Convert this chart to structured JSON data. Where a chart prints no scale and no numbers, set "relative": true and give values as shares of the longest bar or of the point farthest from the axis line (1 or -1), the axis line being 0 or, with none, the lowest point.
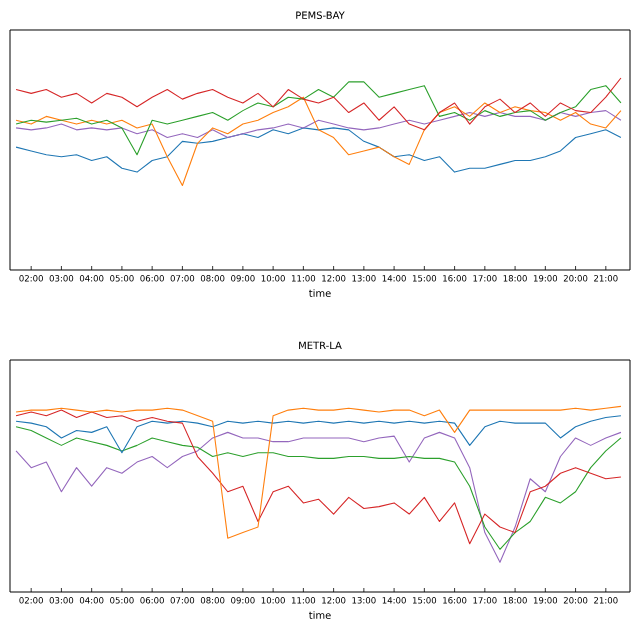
{
  "chart_data": [
    {
      "type": "line",
      "title": "PEMS-BAY",
      "xlabel": "time",
      "relative": true,
      "tick_labels": "x",
      "x": [
        1.5,
        2,
        2.5,
        3,
        3.5,
        4,
        4.5,
        5,
        5.5,
        6,
        6.5,
        7,
        7.5,
        8,
        8.5,
        9,
        9.5,
        10,
        10.5,
        11,
        11.5,
        12,
        12.5,
        13,
        13.5,
        14,
        14.5,
        15,
        15.5,
        16,
        16.5,
        17,
        17.5,
        18,
        18.5,
        19,
        19.5,
        20,
        20.5,
        21,
        21.5
      ],
      "xlim": [
        1.3,
        21.8
      ],
      "xticks": [
        {
          "value": 2,
          "label": "02:00"
        },
        {
          "value": 3,
          "label": "03:00"
        },
        {
          "value": 4,
          "label": "04:00"
        },
        {
          "value": 5,
          "label": "05:00"
        },
        {
          "value": 6,
          "label": "06:00"
        },
        {
          "value": 7,
          "label": "07:00"
        },
        {
          "value": 8,
          "label": "08:00"
        },
        {
          "value": 9,
          "label": "09:00"
        },
        {
          "value": 10,
          "label": "10:00"
        },
        {
          "value": 11,
          "label": "11:00"
        },
        {
          "value": 12,
          "label": "12:00"
        },
        {
          "value": 13,
          "label": "13:00"
        },
        {
          "value": 14,
          "label": "14:00"
        },
        {
          "value": 15,
          "label": "15:00"
        },
        {
          "value": 16,
          "label": "16:00"
        },
        {
          "value": 17,
          "label": "17:00"
        },
        {
          "value": 18,
          "label": "18:00"
        },
        {
          "value": 19,
          "label": "19:00"
        },
        {
          "value": 20,
          "label": "20:00"
        },
        {
          "value": 21,
          "label": "21:00"
        }
      ],
      "series": [
        {
          "color": "#1f77b4",
          "values": [
            0.64,
            0.62,
            0.6,
            0.59,
            0.6,
            0.57,
            0.59,
            0.53,
            0.51,
            0.57,
            0.59,
            0.67,
            0.66,
            0.67,
            0.69,
            0.71,
            0.69,
            0.73,
            0.71,
            0.74,
            0.73,
            0.74,
            0.73,
            0.67,
            0.64,
            0.59,
            0.6,
            0.57,
            0.59,
            0.51,
            0.53,
            0.53,
            0.55,
            0.57,
            0.57,
            0.59,
            0.62,
            0.69,
            0.71,
            0.73,
            0.69
          ]
        },
        {
          "color": "#9467bd",
          "values": [
            0.74,
            0.73,
            0.74,
            0.76,
            0.73,
            0.74,
            0.73,
            0.74,
            0.71,
            0.73,
            0.69,
            0.71,
            0.69,
            0.73,
            0.69,
            0.71,
            0.73,
            0.74,
            0.76,
            0.74,
            0.78,
            0.76,
            0.74,
            0.73,
            0.74,
            0.76,
            0.78,
            0.76,
            0.78,
            0.8,
            0.82,
            0.8,
            0.82,
            0.8,
            0.8,
            0.78,
            0.82,
            0.8,
            0.82,
            0.83,
            0.78
          ]
        },
        {
          "color": "#ff7f0e",
          "values": [
            0.78,
            0.76,
            0.8,
            0.78,
            0.76,
            0.78,
            0.76,
            0.78,
            0.74,
            0.76,
            0.59,
            0.44,
            0.66,
            0.74,
            0.71,
            0.76,
            0.78,
            0.82,
            0.85,
            0.9,
            0.73,
            0.69,
            0.6,
            0.62,
            0.64,
            0.59,
            0.55,
            0.73,
            0.82,
            0.85,
            0.8,
            0.87,
            0.82,
            0.85,
            0.83,
            0.82,
            0.78,
            0.82,
            0.76,
            0.74,
            0.83
          ]
        },
        {
          "color": "#2ca02c",
          "values": [
            0.76,
            0.78,
            0.77,
            0.78,
            0.79,
            0.76,
            0.78,
            0.74,
            0.6,
            0.78,
            0.76,
            0.78,
            0.8,
            0.82,
            0.78,
            0.83,
            0.87,
            0.85,
            0.9,
            0.89,
            0.94,
            0.9,
            0.98,
            0.98,
            0.9,
            0.92,
            0.94,
            0.96,
            0.8,
            0.82,
            0.78,
            0.83,
            0.8,
            0.82,
            0.83,
            0.78,
            0.82,
            0.85,
            0.94,
            0.96,
            0.87
          ]
        },
        {
          "color": "#d62728",
          "values": [
            0.94,
            0.92,
            0.94,
            0.9,
            0.92,
            0.87,
            0.92,
            0.9,
            0.85,
            0.9,
            0.94,
            0.89,
            0.92,
            0.94,
            0.9,
            0.87,
            0.92,
            0.85,
            0.94,
            0.89,
            0.87,
            0.9,
            0.82,
            0.87,
            0.78,
            0.85,
            0.76,
            0.73,
            0.82,
            0.87,
            0.76,
            0.85,
            0.89,
            0.82,
            0.87,
            0.8,
            0.87,
            0.83,
            0.82,
            0.9,
            1.0
          ]
        }
      ]
    },
    {
      "type": "line",
      "title": "METR-LA",
      "xlabel": "time",
      "relative": true,
      "tick_labels": "x",
      "x": [
        1.5,
        2,
        2.5,
        3,
        3.5,
        4,
        4.5,
        5,
        5.5,
        6,
        6.5,
        7,
        7.5,
        8,
        8.5,
        9,
        9.5,
        10,
        10.5,
        11,
        11.5,
        12,
        12.5,
        13,
        13.5,
        14,
        14.5,
        15,
        15.5,
        16,
        16.5,
        17,
        17.5,
        18,
        18.5,
        19,
        19.5,
        20,
        20.5,
        21,
        21.5
      ],
      "xlim": [
        1.3,
        21.8
      ],
      "xticks": [
        {
          "value": 2,
          "label": "02:00"
        },
        {
          "value": 3,
          "label": "03:00"
        },
        {
          "value": 4,
          "label": "04:00"
        },
        {
          "value": 5,
          "label": "05:00"
        },
        {
          "value": 6,
          "label": "06:00"
        },
        {
          "value": 7,
          "label": "07:00"
        },
        {
          "value": 8,
          "label": "08:00"
        },
        {
          "value": 9,
          "label": "09:00"
        },
        {
          "value": 10,
          "label": "10:00"
        },
        {
          "value": 11,
          "label": "11:00"
        },
        {
          "value": 12,
          "label": "12:00"
        },
        {
          "value": 13,
          "label": "13:00"
        },
        {
          "value": 14,
          "label": "14:00"
        },
        {
          "value": 15,
          "label": "15:00"
        },
        {
          "value": 16,
          "label": "16:00"
        },
        {
          "value": 17,
          "label": "17:00"
        },
        {
          "value": 18,
          "label": "18:00"
        },
        {
          "value": 19,
          "label": "19:00"
        },
        {
          "value": 20,
          "label": "20:00"
        },
        {
          "value": 21,
          "label": "21:00"
        }
      ],
      "series": [
        {
          "color": "#9467bd",
          "values": [
            0.76,
            0.67,
            0.7,
            0.54,
            0.67,
            0.57,
            0.67,
            0.64,
            0.7,
            0.73,
            0.67,
            0.73,
            0.76,
            0.83,
            0.86,
            0.83,
            0.83,
            0.81,
            0.81,
            0.83,
            0.83,
            0.83,
            0.83,
            0.81,
            0.83,
            0.84,
            0.7,
            0.83,
            0.86,
            0.83,
            0.67,
            0.32,
            0.16,
            0.35,
            0.61,
            0.54,
            0.73,
            0.83,
            0.79,
            0.83,
            0.86
          ]
        },
        {
          "color": "#2ca02c",
          "values": [
            0.89,
            0.87,
            0.83,
            0.79,
            0.83,
            0.81,
            0.79,
            0.76,
            0.79,
            0.83,
            0.81,
            0.79,
            0.78,
            0.73,
            0.75,
            0.73,
            0.75,
            0.75,
            0.73,
            0.73,
            0.72,
            0.72,
            0.73,
            0.73,
            0.72,
            0.72,
            0.73,
            0.72,
            0.72,
            0.7,
            0.57,
            0.35,
            0.23,
            0.32,
            0.38,
            0.51,
            0.48,
            0.54,
            0.67,
            0.76,
            0.83
          ]
        },
        {
          "color": "#1f77b4",
          "values": [
            0.92,
            0.91,
            0.89,
            0.83,
            0.87,
            0.86,
            0.89,
            0.75,
            0.89,
            0.92,
            0.91,
            0.92,
            0.91,
            0.89,
            0.92,
            0.91,
            0.92,
            0.91,
            0.92,
            0.91,
            0.92,
            0.91,
            0.92,
            0.91,
            0.92,
            0.91,
            0.92,
            0.91,
            0.92,
            0.91,
            0.79,
            0.89,
            0.92,
            0.91,
            0.91,
            0.91,
            0.83,
            0.89,
            0.92,
            0.94,
            0.95
          ]
        },
        {
          "color": "#d62728",
          "values": [
            0.95,
            0.97,
            0.95,
            0.98,
            0.94,
            0.97,
            0.94,
            0.95,
            0.92,
            0.94,
            0.92,
            0.91,
            0.73,
            0.64,
            0.54,
            0.57,
            0.38,
            0.54,
            0.57,
            0.48,
            0.5,
            0.42,
            0.51,
            0.45,
            0.46,
            0.48,
            0.42,
            0.51,
            0.38,
            0.48,
            0.26,
            0.42,
            0.35,
            0.32,
            0.54,
            0.57,
            0.64,
            0.67,
            0.64,
            0.61,
            0.62
          ]
        },
        {
          "color": "#ff7f0e",
          "values": [
            0.97,
            0.98,
            0.98,
            0.99,
            0.98,
            0.97,
            0.98,
            0.97,
            0.98,
            0.98,
            0.99,
            0.98,
            0.95,
            0.92,
            0.29,
            0.32,
            0.35,
            0.95,
            0.98,
            0.99,
            0.98,
            0.98,
            0.99,
            0.98,
            0.97,
            0.98,
            0.98,
            0.95,
            0.98,
            0.86,
            0.98,
            0.98,
            0.98,
            0.98,
            0.98,
            0.98,
            0.98,
            0.99,
            0.98,
            0.99,
            1.0
          ]
        }
      ]
    }
  ]
}
